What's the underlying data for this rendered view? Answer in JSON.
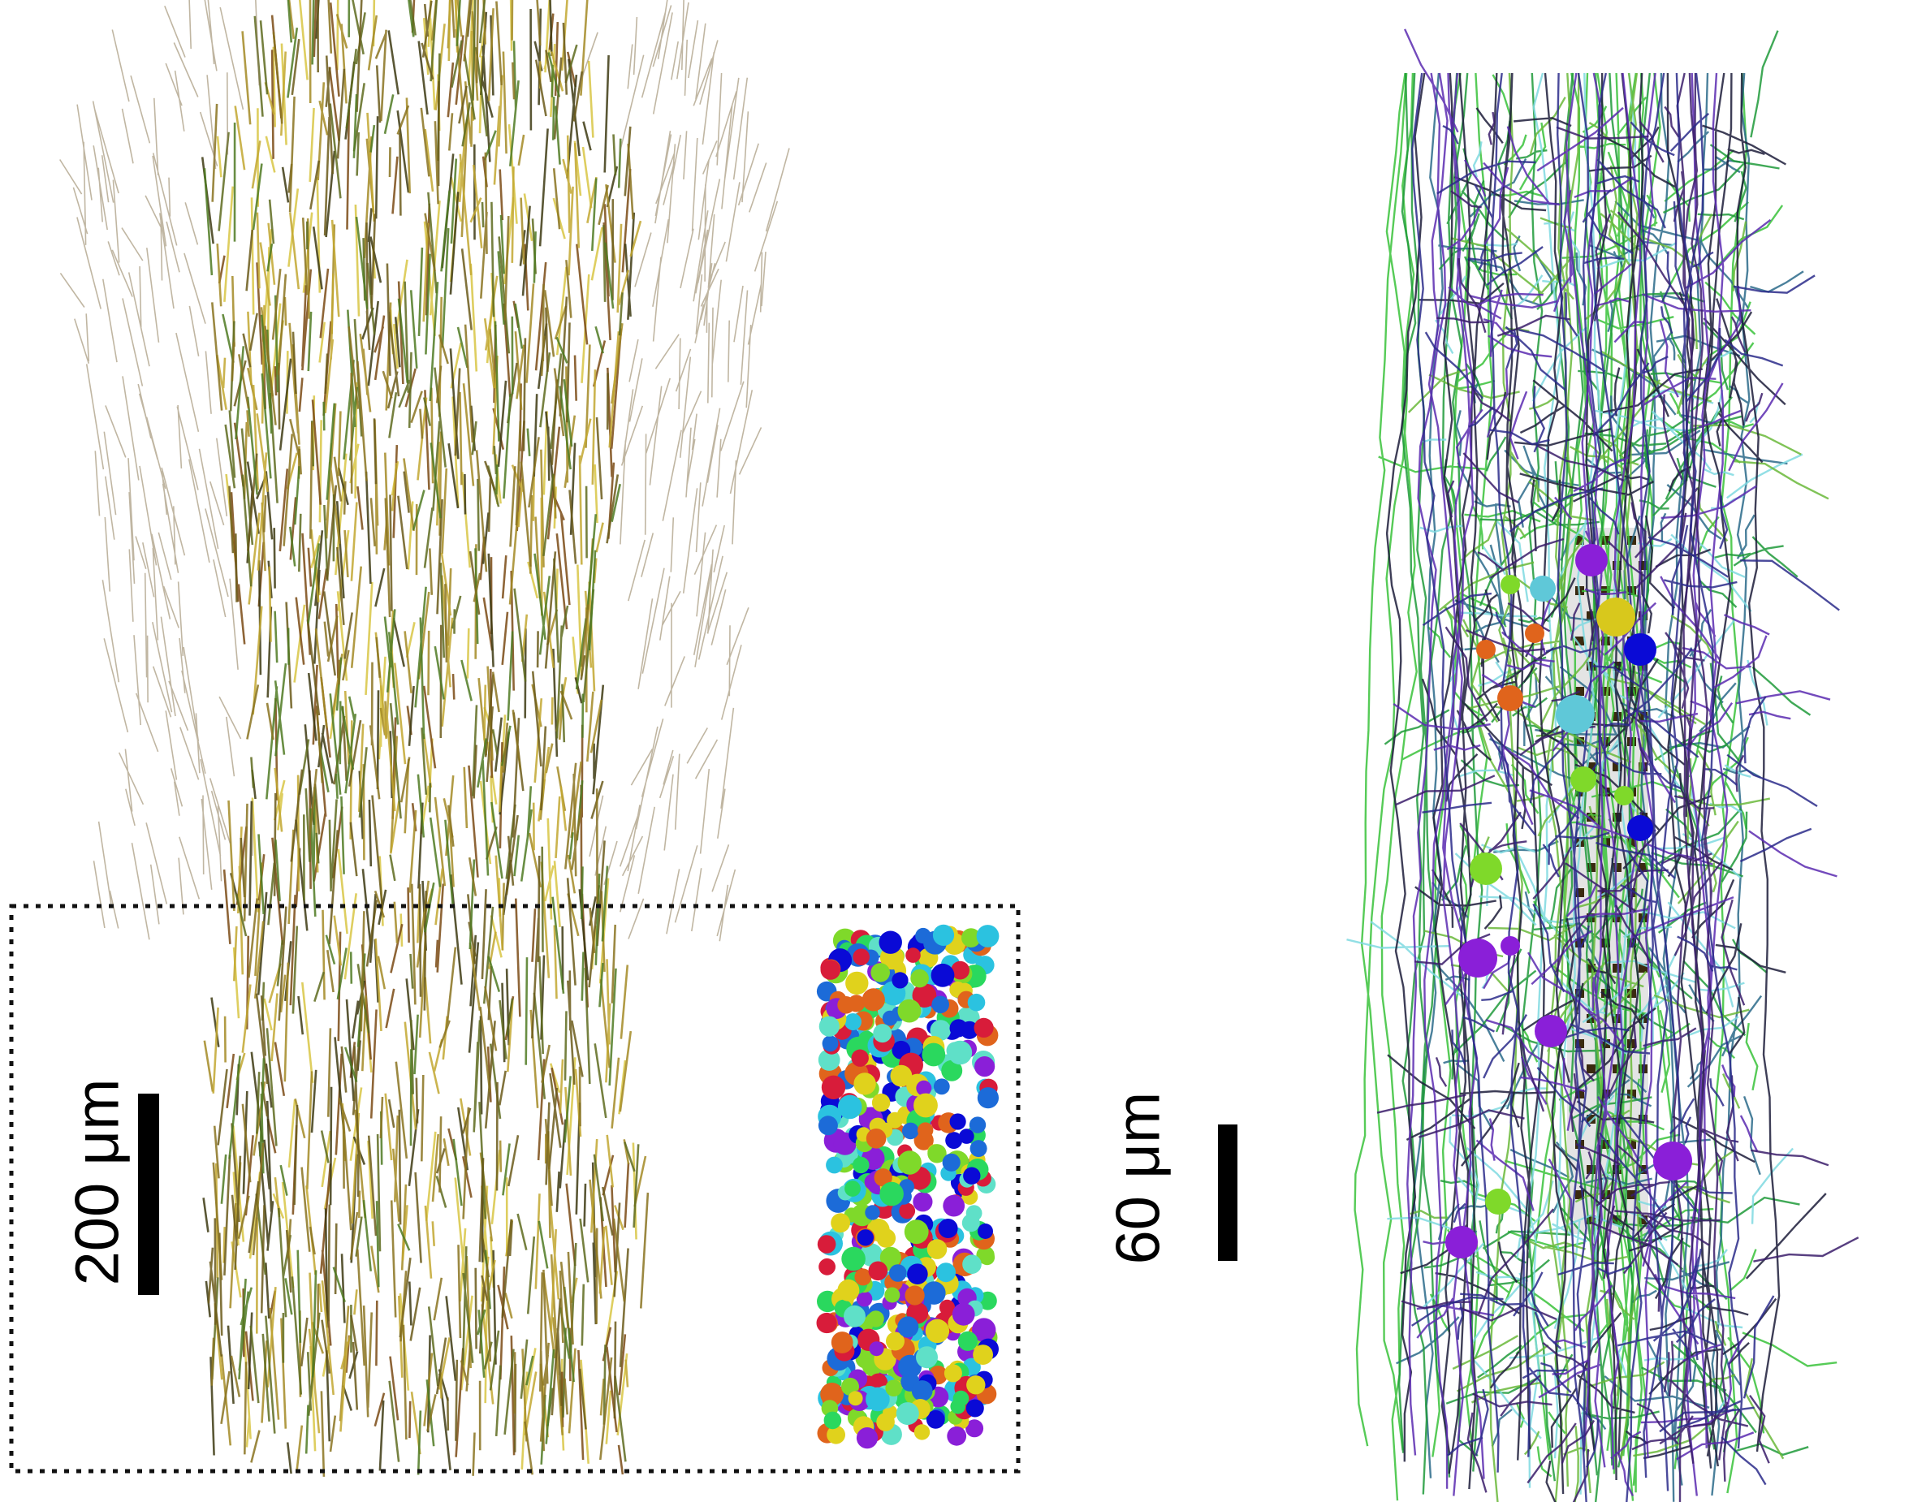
{
  "figure": {
    "left_panel": {
      "scale_label": "200 μm",
      "fiber_colors": [
        "#6b5a1a",
        "#8a7320",
        "#a38a24",
        "#c2a730",
        "#5e6b1e",
        "#3d3a12",
        "#d8c544",
        "#7a4a14",
        "#4f7a22"
      ],
      "sphere_colors": [
        "#0a0ad6",
        "#2bc2e0",
        "#7fd92a",
        "#e0d21c",
        "#e0641c",
        "#8a1fd8",
        "#1c6bd8",
        "#2ad85e",
        "#d81c3a",
        "#5fe0c8"
      ],
      "inset_box": "dotted"
    },
    "right_panel": {
      "scale_label": "60 μm",
      "fiber_colors": [
        "#2a2a8a",
        "#5a2ab0",
        "#1f9a3a",
        "#38c23a",
        "#1c1c3a",
        "#2a6a8a",
        "#7fd9e0",
        "#6ab83a",
        "#3a1c6a"
      ],
      "soma_colors": [
        "#0a0ad6",
        "#5fc8d8",
        "#d8c81c",
        "#8a1fd8",
        "#7fd92a",
        "#e0641c"
      ]
    }
  }
}
